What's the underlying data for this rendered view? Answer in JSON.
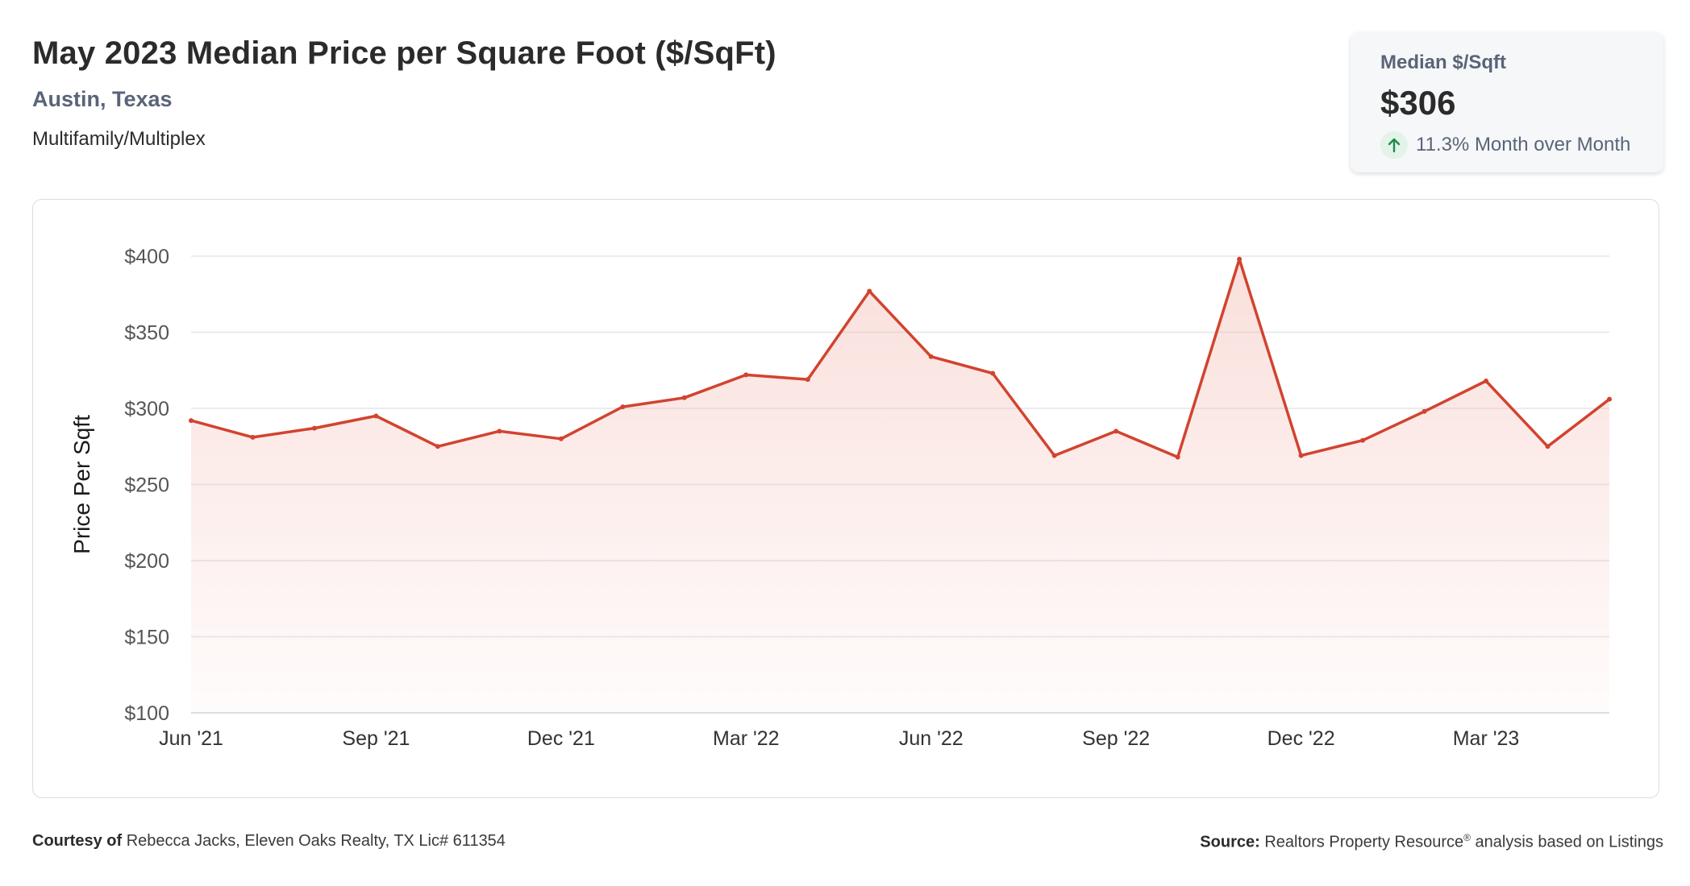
{
  "header": {
    "title": "May 2023 Median Price per Square Foot ($/SqFt)",
    "location": "Austin, Texas",
    "property_type": "Multifamily/Multiplex"
  },
  "summary": {
    "label": "Median $/Sqft",
    "value": "$306",
    "change": "11.3% Month over Month",
    "trend_icon": "arrow-up-icon",
    "trend_color": "#1f8a4c"
  },
  "footer": {
    "courtesy_label": "Courtesy of",
    "courtesy_text": "Rebecca Jacks, Eleven Oaks Realty, TX Lic# 611354",
    "source_label": "Source:",
    "source_text": "Realtors Property Resource",
    "source_mark": "®",
    "source_suffix": " analysis based on Listings"
  },
  "chart_data": {
    "type": "area",
    "title": "",
    "xlabel": "",
    "ylabel": "Price Per Sqft",
    "x": [
      "2021-06",
      "2021-07",
      "2021-08",
      "2021-09",
      "2021-10",
      "2021-11",
      "2021-12",
      "2022-01",
      "2022-02",
      "2022-03",
      "2022-04",
      "2022-05",
      "2022-06",
      "2022-07",
      "2022-08",
      "2022-09",
      "2022-10",
      "2022-11",
      "2022-12",
      "2023-01",
      "2023-02",
      "2023-03",
      "2023-04",
      "2023-05"
    ],
    "values": [
      292,
      281,
      287,
      295,
      275,
      285,
      280,
      301,
      307,
      322,
      319,
      377,
      334,
      323,
      269,
      285,
      268,
      398,
      269,
      279,
      298,
      318,
      275,
      306
    ],
    "ylim": [
      100,
      400
    ],
    "yticks": [
      100,
      150,
      200,
      250,
      300,
      350,
      400
    ],
    "ytick_labels": [
      "$100",
      "$150",
      "$200",
      "$250",
      "$300",
      "$350",
      "$400"
    ],
    "xtick_labels": [
      {
        "index": 0,
        "label": "Jun '21"
      },
      {
        "index": 3,
        "label": "Sep '21"
      },
      {
        "index": 6,
        "label": "Dec '21"
      },
      {
        "index": 9,
        "label": "Mar '22"
      },
      {
        "index": 12,
        "label": "Jun '22"
      },
      {
        "index": 15,
        "label": "Sep '22"
      },
      {
        "index": 18,
        "label": "Dec '22"
      },
      {
        "index": 21,
        "label": "Mar '23"
      }
    ],
    "grid": true,
    "line_color": "#d2432f",
    "fill_color": "#f2b3aa"
  }
}
